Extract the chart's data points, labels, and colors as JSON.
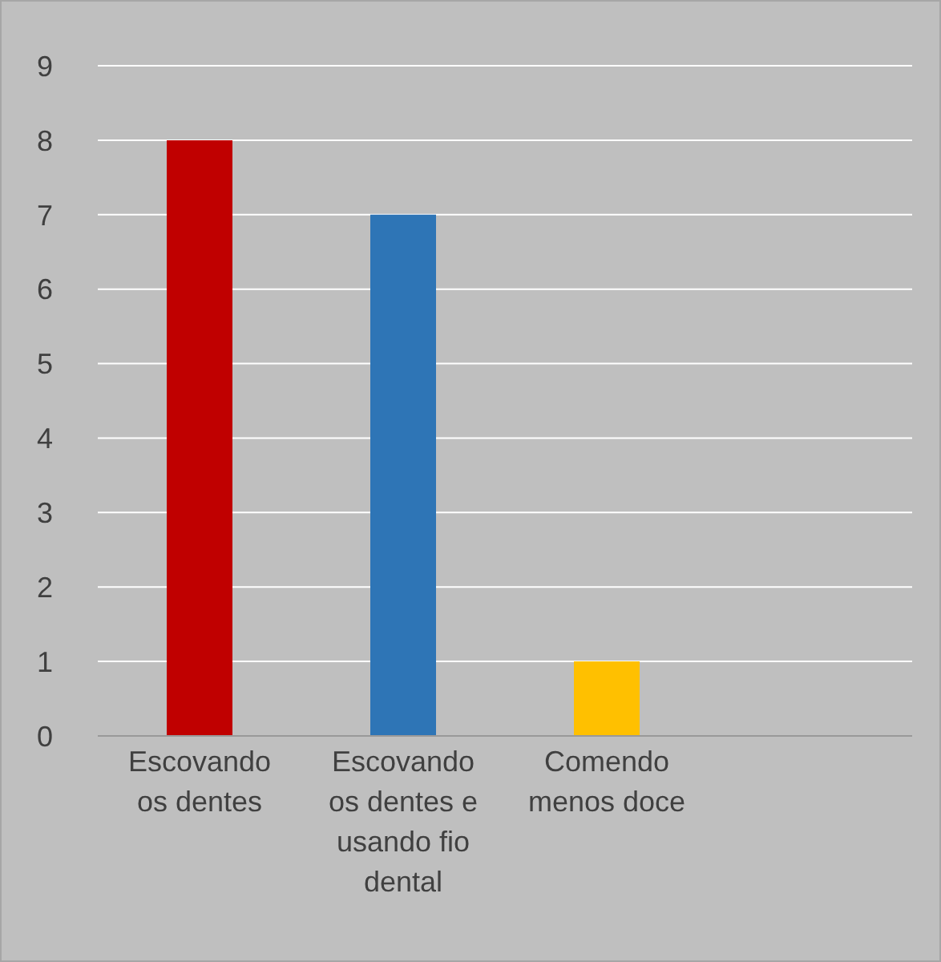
{
  "chart_data": {
    "type": "bar",
    "categories": [
      "Escovando os dentes",
      "Escovando os dentes e usando fio dental",
      "Comendo menos doce",
      null
    ],
    "values": [
      8,
      7,
      1,
      null
    ],
    "colors": [
      "#c00000",
      "#2e75b6",
      "#ffc000",
      "#ffc000"
    ],
    "ylim": [
      0,
      9
    ],
    "yticks": [
      0,
      1,
      2,
      3,
      4,
      5,
      6,
      7,
      8,
      9
    ],
    "grid": "y"
  }
}
